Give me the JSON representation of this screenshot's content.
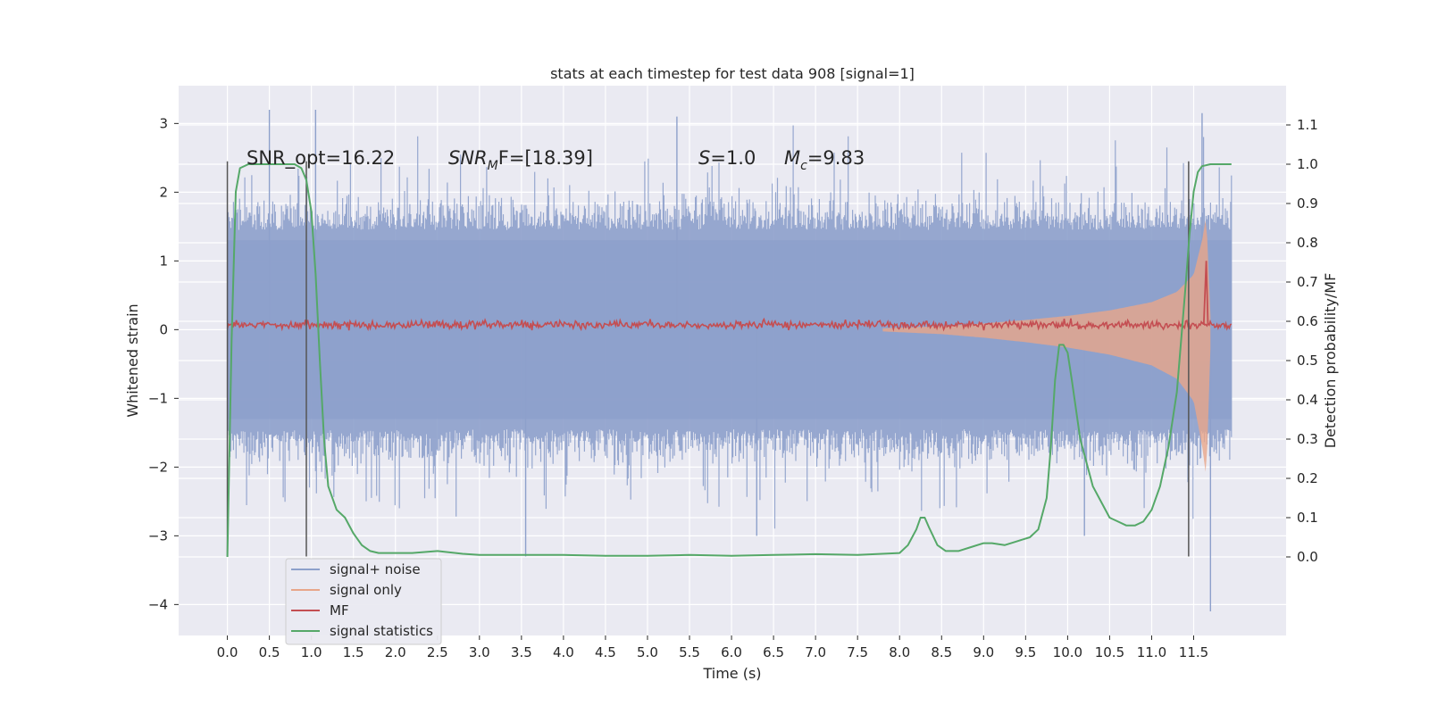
{
  "chart_data": {
    "type": "line",
    "title": "stats at each timestep for test data 908 [signal=1]",
    "xlabel": "Time (s)",
    "ylabel": "Whitened strain",
    "ylabel_right": "Detection probability/MF",
    "xlim": [
      -0.58,
      12.6
    ],
    "ylim": [
      -4.45,
      3.55
    ],
    "ylim_right": [
      -0.2,
      1.2
    ],
    "x_ticks": [
      0.0,
      0.5,
      1.0,
      1.5,
      2.0,
      2.5,
      3.0,
      3.5,
      4.0,
      4.5,
      5.0,
      5.5,
      6.0,
      6.5,
      7.0,
      7.5,
      8.0,
      8.5,
      9.0,
      9.5,
      10.0,
      10.5,
      11.0,
      11.5
    ],
    "x_tick_labels": [
      "0.0",
      "0.5",
      "1.0",
      "1.5",
      "2.0",
      "2.5",
      "3.0",
      "3.5",
      "4.0",
      "4.5",
      "5.0",
      "5.5",
      "6.0",
      "6.5",
      "7.0",
      "7.5",
      "8.0",
      "8.5",
      "9.0",
      "9.5",
      "10.0",
      "10.5",
      "11.0",
      "11.5"
    ],
    "y_ticks": [
      3,
      2,
      1,
      0,
      -1,
      -2,
      -3,
      -4
    ],
    "y_tick_labels": [
      "3",
      "2",
      "1",
      "0",
      "−1",
      "−2",
      "−3",
      "−4"
    ],
    "y_ticks_right": [
      1.1,
      1.0,
      0.9,
      0.8,
      0.7,
      0.6,
      0.5,
      0.4,
      0.3,
      0.2,
      0.1,
      0.0
    ],
    "y_tick_labels_right": [
      "1.1",
      "1.0",
      "0.9",
      "0.8",
      "0.7",
      "0.6",
      "0.5",
      "0.4",
      "0.3",
      "0.2",
      "0.1",
      "0.0"
    ],
    "grid": true,
    "legend_position": "lower-left",
    "annotations": {
      "snr_opt": "SNR_opt=16.22",
      "snr_mf_prefix": "SNR",
      "snr_mf_sub": "M",
      "snr_mf_suffix": "F=[18.39]",
      "s_var": "S",
      "s_value": "=1.0",
      "mc_var": "M",
      "mc_sub": "c",
      "mc_value": "=9.83"
    },
    "vertical_lines_x": [
      0.0,
      0.94,
      11.44
    ],
    "vertical_lines_range_left": [
      -3.3,
      2.45
    ],
    "series": [
      {
        "name": "signal+ noise",
        "color": "#8da0cb",
        "axis": "left",
        "x_range": [
          0.0,
          11.95
        ],
        "band": [
          -1.3,
          1.3
        ],
        "spike_max": 3.2,
        "spike_min": -4.1
      },
      {
        "name": "signal only",
        "color": "#e8a68a",
        "axis": "left",
        "envelope": {
          "x": [
            7.8,
            8.5,
            9.0,
            9.5,
            10.0,
            10.5,
            11.0,
            11.3,
            11.5,
            11.6,
            11.65,
            11.7
          ],
          "amplitude": [
            0.02,
            0.05,
            0.09,
            0.14,
            0.2,
            0.28,
            0.4,
            0.55,
            0.8,
            1.3,
            1.65,
            0.2
          ]
        }
      },
      {
        "name": "MF",
        "color": "#c44e52",
        "axis": "left",
        "x_range": [
          0.0,
          11.95
        ],
        "center": 0.07,
        "noise": 0.04,
        "peak": {
          "x": 11.65,
          "y": 1.0
        }
      },
      {
        "name": "signal statistics",
        "color": "#55a868",
        "axis": "right",
        "x": [
          0.0,
          0.05,
          0.1,
          0.15,
          0.25,
          0.4,
          0.6,
          0.8,
          0.88,
          0.94,
          1.0,
          1.05,
          1.1,
          1.15,
          1.2,
          1.3,
          1.4,
          1.5,
          1.6,
          1.7,
          1.8,
          2.0,
          2.2,
          2.5,
          2.8,
          3.0,
          3.5,
          4.0,
          4.5,
          5.0,
          5.5,
          6.0,
          6.5,
          7.0,
          7.5,
          8.0,
          8.1,
          8.2,
          8.25,
          8.3,
          8.35,
          8.45,
          8.55,
          8.7,
          8.85,
          9.0,
          9.1,
          9.25,
          9.4,
          9.55,
          9.65,
          9.75,
          9.8,
          9.85,
          9.9,
          9.95,
          10.0,
          10.05,
          10.15,
          10.3,
          10.5,
          10.6,
          10.7,
          10.8,
          10.9,
          11.0,
          11.1,
          11.2,
          11.3,
          11.35,
          11.4,
          11.45,
          11.5,
          11.55,
          11.6,
          11.7,
          11.8,
          11.95
        ],
        "y": [
          0.0,
          0.55,
          0.93,
          0.99,
          1.0,
          1.0,
          1.0,
          1.0,
          0.99,
          0.96,
          0.88,
          0.72,
          0.5,
          0.3,
          0.18,
          0.12,
          0.1,
          0.06,
          0.03,
          0.015,
          0.01,
          0.01,
          0.01,
          0.015,
          0.008,
          0.005,
          0.005,
          0.005,
          0.003,
          0.003,
          0.005,
          0.003,
          0.005,
          0.007,
          0.005,
          0.01,
          0.03,
          0.07,
          0.1,
          0.1,
          0.075,
          0.03,
          0.015,
          0.015,
          0.025,
          0.035,
          0.035,
          0.03,
          0.04,
          0.05,
          0.07,
          0.15,
          0.28,
          0.45,
          0.54,
          0.54,
          0.52,
          0.45,
          0.3,
          0.18,
          0.1,
          0.09,
          0.08,
          0.08,
          0.09,
          0.12,
          0.18,
          0.28,
          0.42,
          0.55,
          0.68,
          0.82,
          0.93,
          0.98,
          0.995,
          1.0,
          1.0,
          1.0
        ]
      }
    ]
  }
}
